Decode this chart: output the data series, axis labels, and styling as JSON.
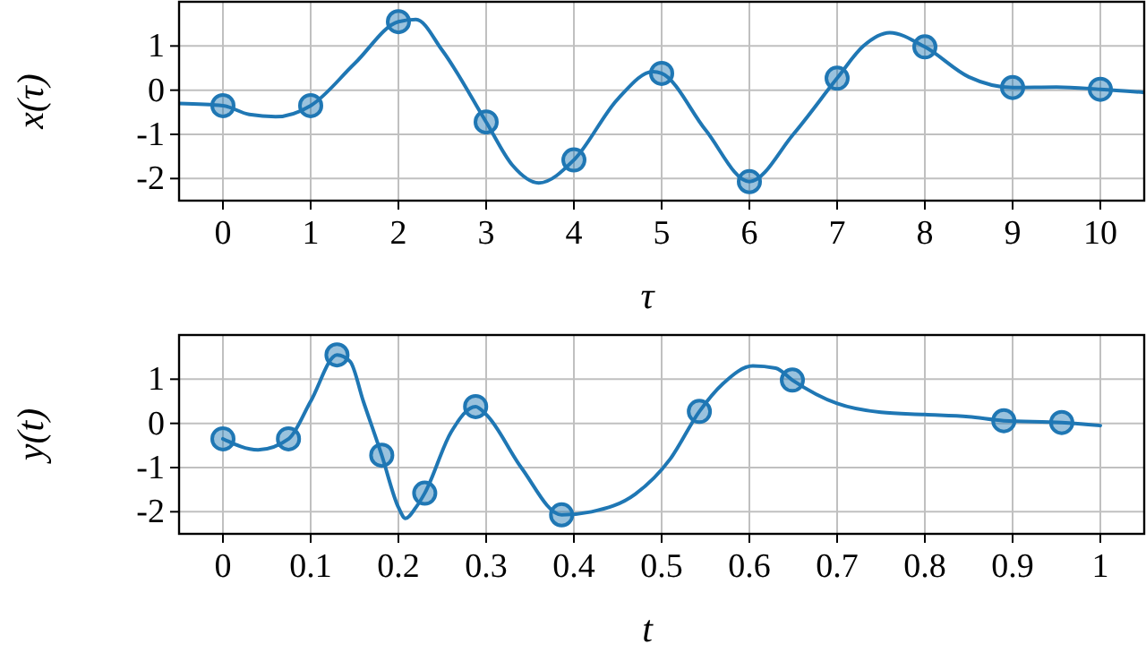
{
  "chart_data": [
    {
      "type": "line",
      "xlabel": "τ",
      "ylabel": "x(τ)",
      "xlim": [
        -0.5,
        10.5
      ],
      "ylim": [
        -2.5,
        2
      ],
      "xticks": [
        0,
        1,
        2,
        3,
        4,
        5,
        6,
        7,
        8,
        9,
        10
      ],
      "yticks": [
        -2,
        -1,
        0,
        1
      ],
      "grid": true,
      "line_style": "solid",
      "series": [
        {
          "color": "#1f77b4",
          "marker": "none",
          "x": [
            -0.5,
            0,
            0.3,
            0.6,
            1,
            1.5,
            2,
            2.2,
            2.5,
            3,
            3.3,
            3.6,
            4,
            4.5,
            4.9,
            5,
            5.5,
            6,
            6.5,
            7,
            7.3,
            7.6,
            8,
            8.5,
            9,
            9.5,
            10,
            10.5
          ],
          "values": [
            -0.3,
            -0.35,
            -0.55,
            -0.6,
            -0.35,
            0.6,
            1.55,
            1.6,
            0.9,
            -0.72,
            -1.7,
            -2.1,
            -1.58,
            -0.2,
            0.42,
            0.38,
            -0.9,
            -2.07,
            -1.0,
            0.27,
            1.0,
            1.3,
            0.98,
            0.3,
            0.06,
            0.07,
            0.02,
            -0.05
          ]
        },
        {
          "type": "scatter",
          "color": "#1f77b4",
          "marker": "circle",
          "x": [
            0,
            1,
            2,
            3,
            4,
            5,
            6,
            7,
            8,
            9,
            10
          ],
          "values": [
            -0.35,
            -0.35,
            1.55,
            -0.72,
            -1.58,
            0.38,
            -2.07,
            0.27,
            0.98,
            0.06,
            0.02
          ]
        }
      ]
    },
    {
      "type": "line",
      "xlabel": "t",
      "ylabel": "y(t)",
      "xlim": [
        -0.05,
        1.05
      ],
      "ylim": [
        -2.5,
        2
      ],
      "xticks": [
        0,
        0.1,
        0.2,
        0.3,
        0.4,
        0.5,
        0.6,
        0.7,
        0.8,
        0.9,
        1
      ],
      "yticks": [
        -2,
        -1,
        0,
        1
      ],
      "grid": true,
      "line_style": "solid",
      "series": [
        {
          "color": "#1f77b4",
          "marker": "none",
          "x": [
            0,
            0.04,
            0.075,
            0.1,
            0.13,
            0.145,
            0.16,
            0.181,
            0.2,
            0.208,
            0.22,
            0.23,
            0.26,
            0.288,
            0.3,
            0.34,
            0.386,
            0.42,
            0.47,
            0.51,
            0.543,
            0.57,
            0.604,
            0.63,
            0.649,
            0.7,
            0.75,
            0.8,
            0.85,
            0.89,
            0.956,
            1.0
          ],
          "values": [
            -0.35,
            -0.6,
            -0.35,
            0.5,
            1.55,
            1.4,
            0.5,
            -0.72,
            -1.9,
            -2.15,
            -1.9,
            -1.58,
            -0.2,
            0.38,
            0.2,
            -1.0,
            -2.07,
            -2.0,
            -1.6,
            -0.8,
            0.27,
            0.9,
            1.3,
            1.25,
            0.98,
            0.45,
            0.25,
            0.2,
            0.15,
            0.06,
            0.02,
            -0.05
          ]
        },
        {
          "type": "scatter",
          "color": "#1f77b4",
          "marker": "circle",
          "x": [
            0,
            0.0747,
            0.13,
            0.181,
            0.23,
            0.288,
            0.386,
            0.543,
            0.649,
            0.89,
            0.956
          ],
          "values": [
            -0.35,
            -0.35,
            1.55,
            -0.72,
            -1.58,
            0.38,
            -2.07,
            0.27,
            0.98,
            0.06,
            0.02
          ]
        }
      ]
    }
  ]
}
